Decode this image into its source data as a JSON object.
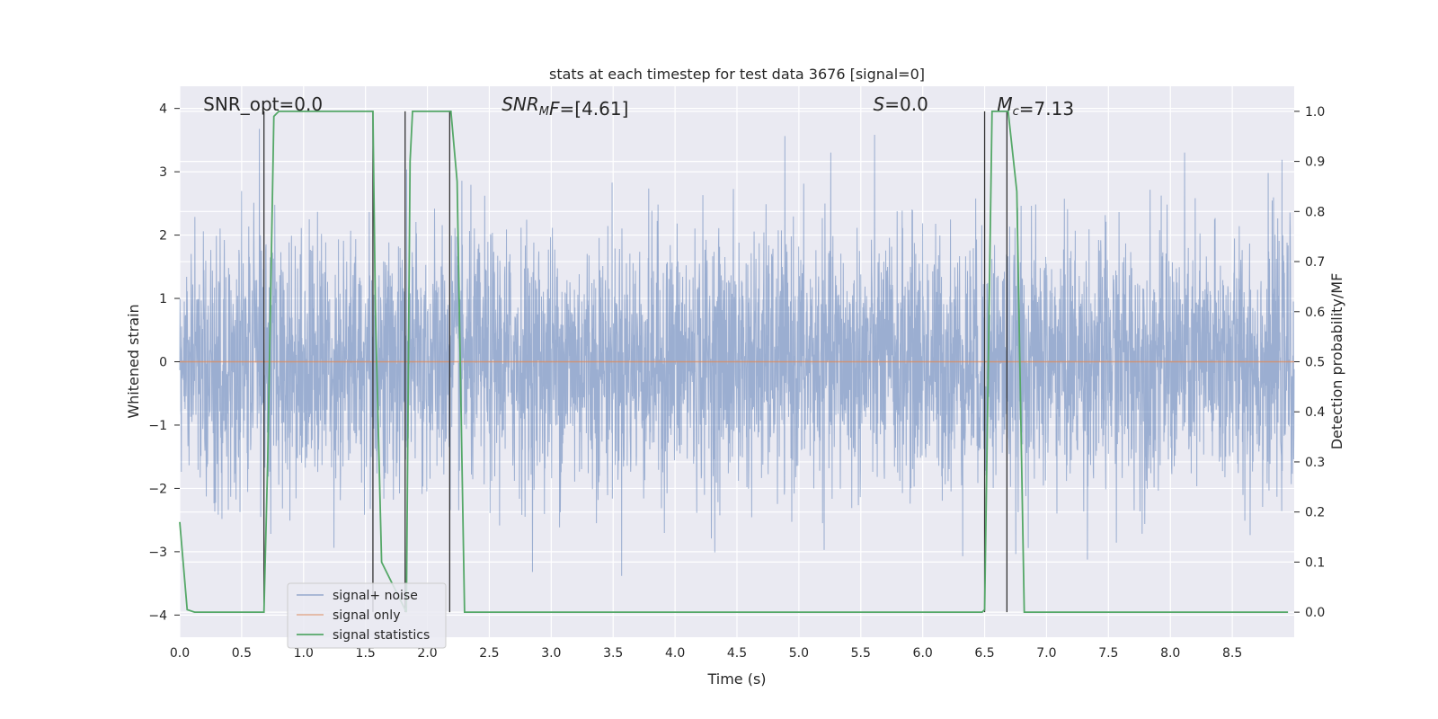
{
  "chart_data": {
    "type": "line",
    "title": "stats at each timestep for test data 3676 [signal=0]",
    "xlabel": "Time (s)",
    "ylabel_left": "Whitened strain",
    "ylabel_right": "Detection probability/MF",
    "xlim": [
      0.0,
      9.0
    ],
    "ylim_left": [
      -4.35,
      4.35
    ],
    "ylim_right": [
      -0.05,
      1.05
    ],
    "x_ticks": [
      0.0,
      0.5,
      1.0,
      1.5,
      2.0,
      2.5,
      3.0,
      3.5,
      4.0,
      4.5,
      5.0,
      5.5,
      6.0,
      6.5,
      7.0,
      7.5,
      8.0,
      8.5
    ],
    "x_tick_labels": [
      "0.0",
      "0.5",
      "1.0",
      "1.5",
      "2.0",
      "2.5",
      "3.0",
      "3.5",
      "4.0",
      "4.5",
      "5.0",
      "5.5",
      "6.0",
      "6.5",
      "7.0",
      "7.5",
      "8.0",
      "8.5"
    ],
    "y_ticks_left": [
      -4,
      -3,
      -2,
      -1,
      0,
      1,
      2,
      3,
      4
    ],
    "y_tick_labels_left": [
      "−4",
      "−3",
      "−2",
      "−1",
      "0",
      "1",
      "2",
      "3",
      "4"
    ],
    "y_ticks_right": [
      0.0,
      0.1,
      0.2,
      0.3,
      0.4,
      0.5,
      0.6,
      0.7,
      0.8,
      0.9,
      1.0
    ],
    "y_tick_labels_right": [
      "0.0",
      "0.1",
      "0.2",
      "0.3",
      "0.4",
      "0.5",
      "0.6",
      "0.7",
      "0.8",
      "0.9",
      "1.0"
    ],
    "grid": true,
    "background": "#eaeaf2",
    "legend_placement": "lower-left",
    "series": [
      {
        "name": "signal+ noise",
        "axis": "left",
        "color": "#4c72b0",
        "x_range": [
          0.0,
          9.0
        ],
        "typical_envelope": [
          -2.5,
          2.5
        ],
        "peak_max": 4.0,
        "peak_min": -3.9
      },
      {
        "name": "signal only",
        "axis": "left",
        "color": "#dd8452",
        "x": [
          0.0,
          9.0
        ],
        "y": [
          0.0,
          0.0
        ]
      },
      {
        "name": "signal statistics",
        "axis": "right",
        "color": "#55a868",
        "x": [
          0.0,
          0.06,
          0.12,
          0.68,
          0.71,
          0.76,
          0.8,
          1.56,
          1.58,
          1.63,
          1.83,
          1.86,
          1.88,
          2.19,
          2.24,
          2.3,
          2.35,
          6.48,
          6.5,
          6.56,
          6.69,
          6.76,
          6.82,
          8.95
        ],
        "y": [
          0.18,
          0.005,
          0.0,
          0.0,
          0.3,
          0.99,
          1.0,
          1.0,
          0.6,
          0.1,
          0.0,
          0.9,
          1.0,
          1.0,
          0.86,
          0.0,
          0.0,
          0.0,
          0.005,
          1.0,
          1.0,
          0.84,
          0.0,
          0.0
        ]
      }
    ],
    "vertical_lines": {
      "color": "#333333",
      "x": [
        0.68,
        1.56,
        1.82,
        2.18,
        6.5,
        6.68
      ],
      "ymax": [
        1.0,
        1.0,
        1.0,
        1.0,
        1.0,
        1.0
      ],
      "ymin": [
        0.0,
        0.0,
        0.0,
        0.0,
        0.0,
        0.0
      ]
    },
    "annotations": [
      {
        "key": "snr-opt",
        "label": "SNR_opt=0.0",
        "x": 0.19
      },
      {
        "key": "snr-mf",
        "label": "=[4.61]",
        "x": 2.6,
        "math": {
          "base": "SNR",
          "sub": "M",
          "suffix": "F"
        }
      },
      {
        "key": "s",
        "label": "=0.0",
        "x": 5.6,
        "math": {
          "base": "S",
          "sub": "",
          "suffix": ""
        }
      },
      {
        "key": "mc",
        "label": "=7.13",
        "x": 6.6,
        "math": {
          "base": "M",
          "sub": "c",
          "suffix": ""
        }
      }
    ]
  }
}
